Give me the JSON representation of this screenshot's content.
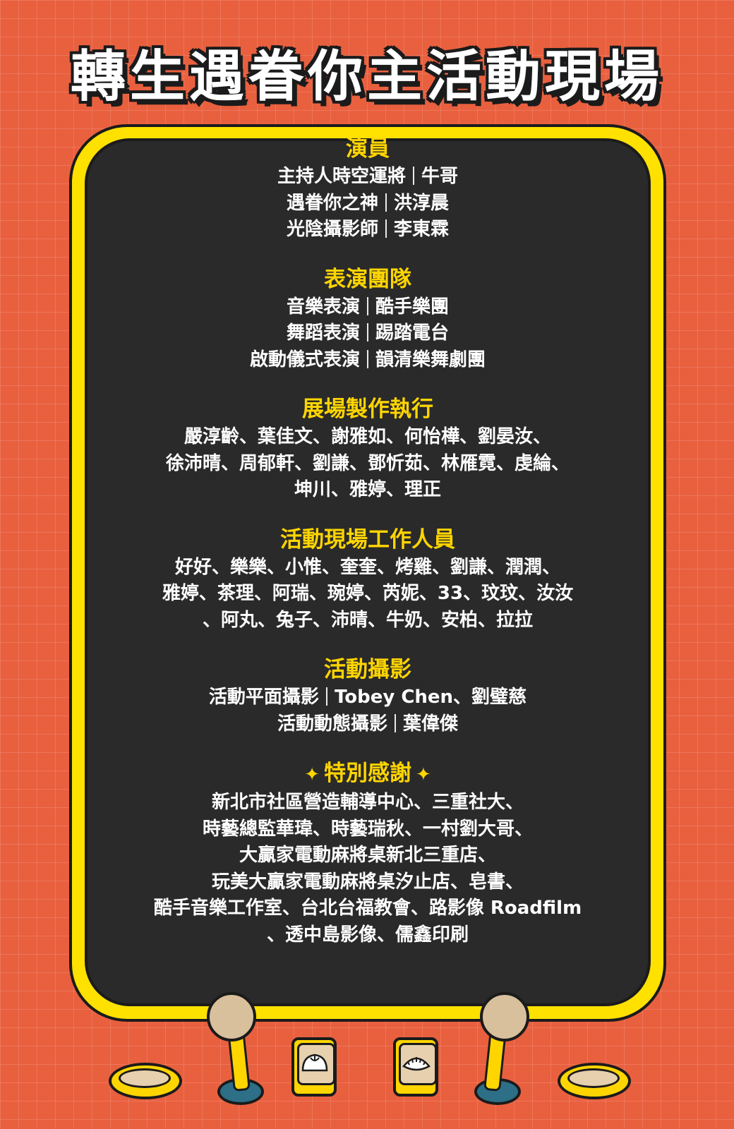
{
  "title": "轉生遇眷你主活動現場",
  "sections": [
    {
      "heading": "演員",
      "lines": [
        [
          "主持人時空運將",
          "牛哥"
        ],
        [
          "遇眷你之神",
          "洪淳晨"
        ],
        [
          "光陰攝影師",
          "李東霖"
        ]
      ]
    },
    {
      "heading": "表演團隊",
      "lines": [
        [
          "音樂表演",
          "酷手樂團"
        ],
        [
          "舞蹈表演",
          "踢踏電台"
        ],
        [
          "啟動儀式表演",
          "韻清樂舞劇團"
        ]
      ]
    },
    {
      "heading": "展場製作執行",
      "lines": [
        "嚴淳齡、葉佳文、謝雅如、何怡樺、劉晏汝、",
        "徐沛晴、周郁軒、劉謙、鄧忻茹、林雁霓、虔綸、",
        "坤川、雅婷、理正"
      ]
    },
    {
      "heading": "活動現場工作人員",
      "lines": [
        "好好、樂樂、小惟、奎奎、烤雞、劉謙、潤潤、",
        "雅婷、茶理、阿瑞、琬婷、芮妮、33、玟玟、汝汝",
        "、阿丸、兔子、沛晴、牛奶、安柏、拉拉"
      ]
    },
    {
      "heading": "活動攝影",
      "lines": [
        [
          "活動平面攝影",
          "Tobey Chen、劉璧慈"
        ],
        [
          "活動動態攝影",
          "葉偉傑"
        ]
      ]
    },
    {
      "heading": "特別感謝",
      "sparkle": "✦",
      "lines": [
        "新北市社區營造輔導中心、三重社大、",
        "時藝總監華瑋、時藝瑞秋、一村劉大哥、",
        "大贏家電動麻將桌新北三重店、",
        "玩美大贏家電動麻將桌汐止店、皂書、",
        "酷手音樂工作室、台北台福教會、路影像 Roadfilm",
        "、透中島影像、儒鑫印刷"
      ]
    }
  ],
  "decorations": {
    "icons": [
      "joystick-icon",
      "bun-tile-icon",
      "dumpling-tile-icon",
      "button-pad-icon"
    ]
  }
}
